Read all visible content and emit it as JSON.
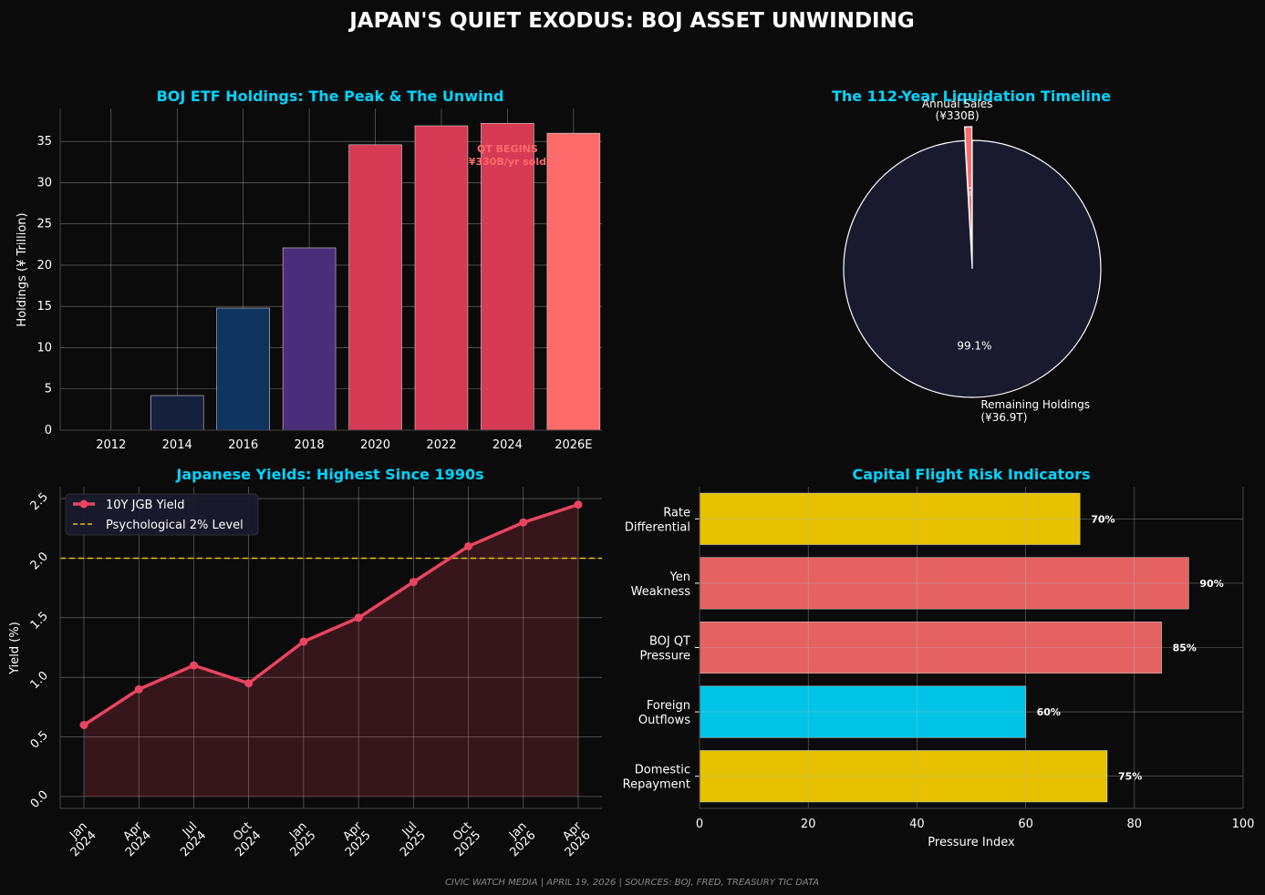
{
  "title": "JAPAN'S QUIET EXODUS: BOJ ASSET UNWINDING",
  "footer": "CIVIC WATCH MEDIA | APRIL 19, 2026 | SOURCES: BOJ, FRED, TREASURY TIC DATA",
  "colors": {
    "background": "#0b0b0b",
    "subtitle": "#00d4ff",
    "grid": "#bbbbbb",
    "accent_red": "#e94560",
    "accent_salmon": "#ff6b6b",
    "gold": "#e6c200",
    "cyan": "#00c4e6",
    "navy": "#1a1a2e"
  },
  "chart_data": [
    {
      "type": "bar",
      "title": "BOJ ETF Holdings: The Peak & The Unwind",
      "xlabel": "",
      "ylabel": "Holdings (¥ Trillion)",
      "categories": [
        "2012",
        "2014",
        "2016",
        "2018",
        "2020",
        "2022",
        "2024",
        "2026E"
      ],
      "values": [
        0,
        4.2,
        14.8,
        22.1,
        34.6,
        36.9,
        37.2,
        36.0
      ],
      "bar_colors": [
        "#1a1a2e",
        "#16213e",
        "#0f3460",
        "#4b2e7a",
        "#d63a54",
        "#d63a54",
        "#d63a54",
        "#ff6b6b"
      ],
      "ylim": [
        0,
        39
      ],
      "yticks": [
        0,
        5,
        10,
        15,
        20,
        25,
        30,
        35
      ],
      "annotation": {
        "line1": "QT BEGINS",
        "line2": "¥330B/yr sold",
        "x_category": "2024",
        "y": 33.5
      },
      "grid": true
    },
    {
      "type": "pie",
      "title": "The 112-Year Liquidation Timeline",
      "slices": [
        {
          "label": "Annual Sales\n(¥330B)",
          "value": 0.9,
          "pct_label": "0.9%",
          "color": "#ff6b6b",
          "exploded": true
        },
        {
          "label": "Remaining Holdings\n(¥36.9T)",
          "value": 99.1,
          "pct_label": "99.1%",
          "color": "#1a1a2e",
          "exploded": false
        }
      ]
    },
    {
      "type": "line",
      "title": "Japanese Yields: Highest Since 1990s",
      "xlabel": "",
      "ylabel": "Yield (%)",
      "categories": [
        "Jan\n2024",
        "Apr\n2024",
        "Jul\n2024",
        "Oct\n2024",
        "Jan\n2025",
        "Apr\n2025",
        "Jul\n2025",
        "Oct\n2025",
        "Jan\n2026",
        "Apr\n2026"
      ],
      "series": [
        {
          "name": "10Y JGB Yield",
          "values": [
            0.6,
            0.9,
            1.1,
            0.95,
            1.3,
            1.5,
            1.8,
            2.1,
            2.3,
            2.45
          ],
          "color": "#e94560"
        }
      ],
      "reference_line": {
        "name": "Psychological 2% Level",
        "value": 2.0,
        "color": "#e6c200"
      },
      "ylim": [
        -0.1,
        2.6
      ],
      "yticks": [
        "0.0",
        "0.5",
        "1.0",
        "1.5",
        "2.0",
        "2.5"
      ],
      "legend": "top-left",
      "grid": true
    },
    {
      "type": "bar",
      "orientation": "horizontal",
      "title": "Capital Flight Risk Indicators",
      "xlabel": "Pressure Index",
      "ylabel": "",
      "categories": [
        "Rate\nDifferential",
        "Yen\nWeakness",
        "BOJ QT\nPressure",
        "Foreign\nOutflows",
        "Domestic\nRepayment"
      ],
      "values": [
        70,
        90,
        85,
        60,
        75
      ],
      "value_labels": [
        "70%",
        "90%",
        "85%",
        "60%",
        "75%"
      ],
      "bar_colors": [
        "#e6c200",
        "#e46262",
        "#e46262",
        "#00c4e6",
        "#e6c200"
      ],
      "xlim": [
        0,
        100
      ],
      "xticks": [
        "0",
        "20",
        "40",
        "60",
        "80",
        "100"
      ],
      "grid": true
    }
  ]
}
